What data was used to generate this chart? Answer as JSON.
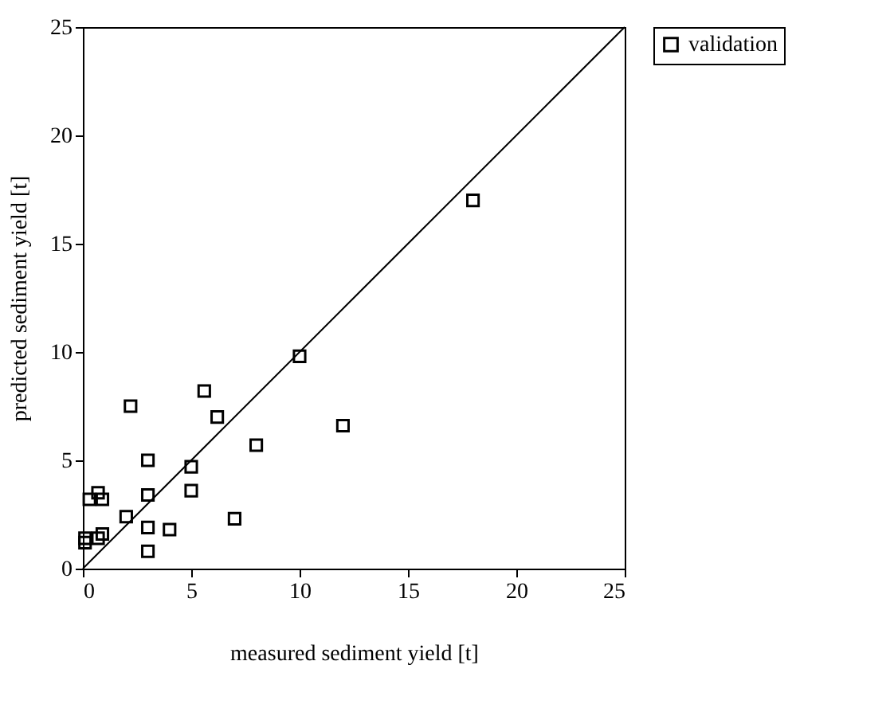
{
  "chart_data": {
    "type": "scatter",
    "xlabel": "measured sediment yield [t]",
    "ylabel": "predicted sediment yield [t]",
    "xlim": [
      0,
      25
    ],
    "ylim": [
      0,
      25
    ],
    "xticks": [
      0,
      5,
      10,
      15,
      20,
      25
    ],
    "yticks": [
      0,
      5,
      10,
      15,
      20,
      25
    ],
    "grid": false,
    "legend": "right",
    "series": [
      {
        "name": "validation",
        "color": "#000000",
        "marker": "square",
        "x": [
          0.1,
          0.1,
          0.3,
          0.7,
          0.9,
          0.7,
          0.9,
          2,
          2.2,
          3,
          3,
          3,
          3,
          4,
          5,
          5,
          5.6,
          6.2,
          7,
          8,
          10,
          12,
          18
        ],
        "values": [
          1.2,
          1.4,
          3.2,
          3.5,
          3.2,
          1.4,
          1.6,
          2.4,
          7.5,
          5,
          3.4,
          1.9,
          0.8,
          1.8,
          4.7,
          3.6,
          8.2,
          7,
          2.3,
          5.7,
          9.8,
          6.6,
          17
        ]
      },
      {
        "type": "line",
        "color": "#000000",
        "x": [
          0,
          25
        ],
        "values": [
          0,
          25
        ]
      }
    ]
  }
}
